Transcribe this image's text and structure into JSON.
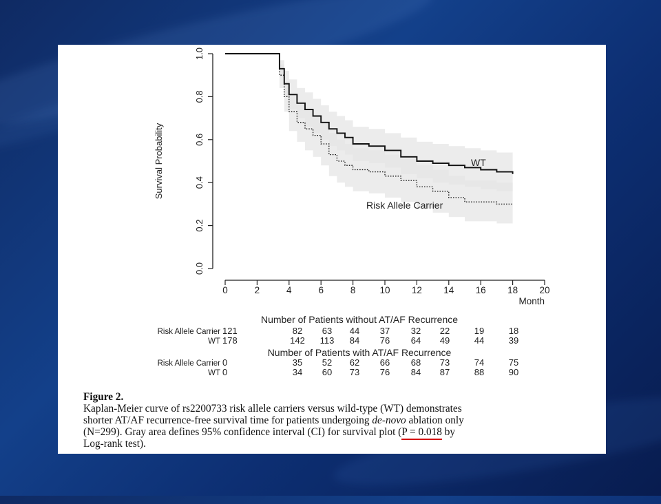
{
  "slide": {
    "background_colors": [
      "#0f2a63",
      "#13408a",
      "#081c4f"
    ]
  },
  "chart_data": {
    "type": "line",
    "title": "",
    "xlabel": "Month",
    "ylabel": "Survival Probability",
    "xlim": [
      0,
      20
    ],
    "ylim": [
      0,
      1
    ],
    "x_ticks": [
      "0",
      "2",
      "4",
      "6",
      "8",
      "10",
      "12",
      "14",
      "16",
      "18",
      "20"
    ],
    "y_ticks": [
      "0.0",
      "0.2",
      "0.4",
      "0.6",
      "0.8",
      "1.0"
    ],
    "series": [
      {
        "name": "WT",
        "style": "solid",
        "x": [
          0,
          3.1,
          3.4,
          3.7,
          4.0,
          4.5,
          5.0,
          5.5,
          6.0,
          6.5,
          7.0,
          7.5,
          8.0,
          9.0,
          10.0,
          11.0,
          12.0,
          13.0,
          14.0,
          15.0,
          16.0,
          17.0,
          18.0
        ],
        "y": [
          1.0,
          1.0,
          0.93,
          0.86,
          0.81,
          0.77,
          0.74,
          0.71,
          0.68,
          0.65,
          0.63,
          0.61,
          0.58,
          0.57,
          0.55,
          0.52,
          0.5,
          0.49,
          0.48,
          0.47,
          0.46,
          0.45,
          0.44
        ],
        "ci_lower": [
          1.0,
          1.0,
          0.89,
          0.8,
          0.74,
          0.7,
          0.66,
          0.63,
          0.6,
          0.57,
          0.55,
          0.53,
          0.5,
          0.49,
          0.47,
          0.44,
          0.42,
          0.4,
          0.39,
          0.38,
          0.37,
          0.36,
          0.35
        ],
        "ci_upper": [
          1.0,
          1.0,
          0.97,
          0.92,
          0.88,
          0.84,
          0.82,
          0.79,
          0.76,
          0.73,
          0.71,
          0.69,
          0.66,
          0.65,
          0.63,
          0.61,
          0.59,
          0.58,
          0.57,
          0.56,
          0.55,
          0.54,
          0.53
        ]
      },
      {
        "name": "Risk Allele Carrier",
        "style": "dotted",
        "x": [
          0,
          3.1,
          3.4,
          3.7,
          4.0,
          4.5,
          5.0,
          5.5,
          6.0,
          6.5,
          7.0,
          7.5,
          8.0,
          9.0,
          10.0,
          11.0,
          12.0,
          13.0,
          14.0,
          15.0,
          16.0,
          17.0,
          18.0
        ],
        "y": [
          1.0,
          1.0,
          0.9,
          0.8,
          0.73,
          0.68,
          0.65,
          0.62,
          0.58,
          0.53,
          0.5,
          0.48,
          0.46,
          0.45,
          0.43,
          0.41,
          0.38,
          0.36,
          0.33,
          0.31,
          0.31,
          0.3,
          0.3
        ],
        "ci_lower": [
          1.0,
          1.0,
          0.84,
          0.73,
          0.64,
          0.59,
          0.55,
          0.52,
          0.48,
          0.43,
          0.4,
          0.38,
          0.36,
          0.35,
          0.33,
          0.31,
          0.28,
          0.26,
          0.24,
          0.22,
          0.22,
          0.21,
          0.21
        ],
        "ci_upper": [
          1.0,
          1.0,
          0.95,
          0.87,
          0.81,
          0.77,
          0.74,
          0.72,
          0.68,
          0.63,
          0.6,
          0.58,
          0.56,
          0.55,
          0.53,
          0.51,
          0.48,
          0.46,
          0.43,
          0.41,
          0.41,
          0.4,
          0.4
        ]
      }
    ],
    "annotations": {
      "wt_label": "WT",
      "carrier_label": "Risk Allele Carrier"
    },
    "risk_tables": [
      {
        "title": "Number of Patients without AT/AF Recurrence",
        "rows": [
          {
            "label": "Risk Allele Carrier",
            "values": [
              "121",
              "82",
              "63",
              "44",
              "37",
              "32",
              "22",
              "19",
              "18"
            ]
          },
          {
            "label": "WT",
            "values": [
              "178",
              "142",
              "113",
              "84",
              "76",
              "64",
              "49",
              "44",
              "39"
            ]
          }
        ]
      },
      {
        "title": "Number of Patients with AT/AF Recurrence",
        "rows": [
          {
            "label": "Risk Allele Carrier",
            "values": [
              "0",
              "35",
              "52",
              "62",
              "66",
              "68",
              "73",
              "74",
              "75"
            ]
          },
          {
            "label": "WT",
            "values": [
              "0",
              "34",
              "60",
              "73",
              "76",
              "84",
              "87",
              "88",
              "90"
            ]
          }
        ]
      }
    ],
    "ci_fill_color": "#e6e6e6",
    "line_color": "#111111"
  },
  "caption": {
    "heading": "Figure 2.",
    "line1": "Kaplan-Meier curve of rs2200733 risk allele carriers versus wild-type (WT) demonstrates",
    "line2_a": "shorter AT/AF recurrence-free survival time for patients undergoing ",
    "line2_italic": "de-novo",
    "line2_b": " ablation only",
    "line3_a": "(N=299). Gray area defines 95% confidence interval (CI) for survival plot (",
    "line3_highlight": "P = 0.018",
    "line3_b": " by",
    "line4": "Log-rank test).",
    "highlight_color": "#d40000"
  }
}
